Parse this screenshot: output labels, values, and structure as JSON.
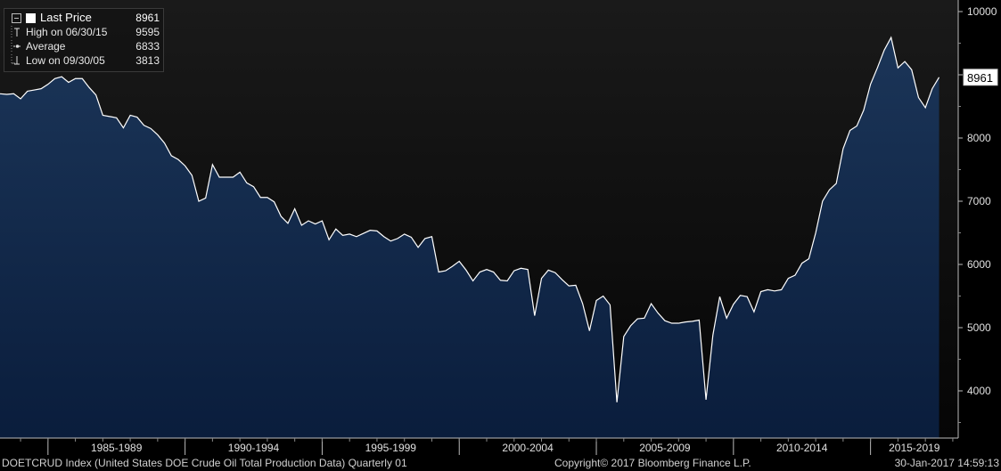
{
  "legend": {
    "last_price": {
      "label": "Last Price",
      "value": "8961"
    },
    "high": {
      "label": "High on 06/30/15",
      "value": "9595"
    },
    "average": {
      "label": "Average",
      "value": "6833"
    },
    "low": {
      "label": "Low on 09/30/05",
      "value": "3813"
    }
  },
  "footer": {
    "index_description": "DOETCRUD Index (United States DOE Crude Oil Total Production Data)  Quarterly 01",
    "copyright": "Copyright© 2017 Bloomberg Finance L.P.",
    "timestamp": "30-Jan-2017 14:59:13"
  },
  "colors": {
    "background": "#000000",
    "plot_top": "#171717",
    "area_top": "#1b3558",
    "area_bottom": "#0b1f3f",
    "line": "#ffffff",
    "axis_text": "#e0e0e0"
  },
  "chart_data": {
    "type": "area",
    "series": [
      {
        "name": "Last Price",
        "values": [
          8700,
          8690,
          8700,
          8620,
          8740,
          8760,
          8780,
          8850,
          8940,
          8970,
          8880,
          8940,
          8940,
          8800,
          8680,
          8360,
          8340,
          8320,
          8160,
          8360,
          8330,
          8200,
          8150,
          8050,
          7920,
          7720,
          7660,
          7560,
          7410,
          7000,
          7050,
          7580,
          7380,
          7380,
          7380,
          7460,
          7290,
          7230,
          7060,
          7060,
          6990,
          6760,
          6650,
          6880,
          6620,
          6690,
          6640,
          6690,
          6390,
          6560,
          6460,
          6480,
          6440,
          6490,
          6540,
          6530,
          6440,
          6370,
          6410,
          6480,
          6430,
          6270,
          6410,
          6440,
          5880,
          5900,
          5970,
          6050,
          5910,
          5740,
          5880,
          5920,
          5880,
          5750,
          5740,
          5900,
          5940,
          5920,
          5190,
          5780,
          5910,
          5870,
          5760,
          5660,
          5670,
          5380,
          4950,
          5430,
          5500,
          5360,
          3820,
          4860,
          5030,
          5140,
          5150,
          5380,
          5230,
          5110,
          5070,
          5070,
          5090,
          5100,
          5120,
          3860,
          4880,
          5490,
          5150,
          5370,
          5510,
          5490,
          5250,
          5570,
          5600,
          5580,
          5600,
          5780,
          5830,
          6020,
          6090,
          6500,
          7000,
          7180,
          7280,
          7830,
          8120,
          8190,
          8440,
          8850,
          9110,
          9390,
          9590,
          9110,
          9210,
          9080,
          8640,
          8480,
          8780,
          8961
        ]
      }
    ],
    "x_tick_labels": [
      "1985-1989",
      "1990-1994",
      "1995-1999",
      "2000-2004",
      "2005-2009",
      "2010-2014",
      "2015-2019"
    ],
    "y_ticks": [
      4000,
      5000,
      6000,
      7000,
      8000,
      9000,
      10000
    ],
    "y_tick_labels": [
      "4000",
      "5000",
      "6000",
      "7000",
      "8000",
      "",
      "10000"
    ],
    "last_value_label": "8961",
    "ylim": [
      3000,
      10100
    ],
    "grid": false,
    "legend_position": "top-left"
  }
}
